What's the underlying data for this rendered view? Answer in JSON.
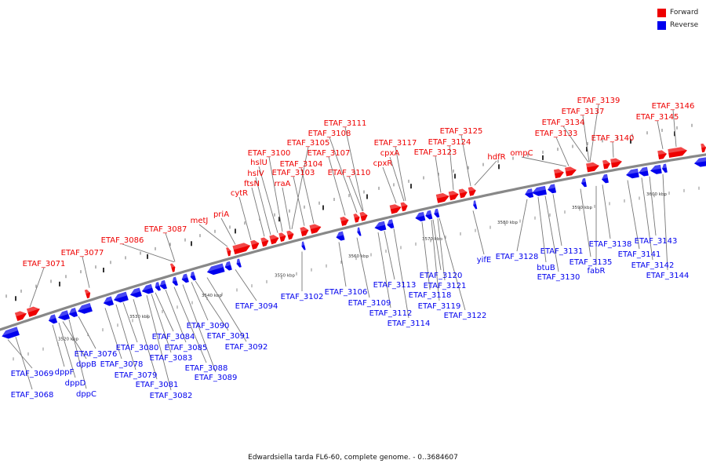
{
  "caption": "Edwardsiella tarda FL6-60, complete genome. - 0..3684607",
  "legend": {
    "forward": {
      "label": "Forward",
      "color": "#ee0000"
    },
    "reverse": {
      "label": "Reverse",
      "color": "#0000ee"
    }
  },
  "colors": {
    "backbone": "#888888",
    "tick": "#000000",
    "leader": "#777777"
  },
  "scale": {
    "unit": "kbp",
    "labels": [
      "3520 kbp",
      "3530 kbp",
      "3540 kbp",
      "3550 kbp",
      "3560 kbp",
      "3570 kbp",
      "3580 kbp",
      "3590 kbp",
      "3600 kbp"
    ]
  },
  "forward_genes": [
    "ETAF_3071",
    "ETAF_3077",
    "ETAF_3086",
    "ETAF_3087",
    "metJ",
    "priA",
    "cytR",
    "ftsN",
    "hslV",
    "hslU",
    "ETAF_3100",
    "rraA",
    "ETAF_3103",
    "ETAF_3104",
    "ETAF_3105",
    "ETAF_3107",
    "ETAF_3108",
    "ETAF_3111",
    "ETAF_3110",
    "cpxR",
    "cpxA",
    "ETAF_3117",
    "ETAF_3123",
    "ETAF_3124",
    "ETAF_3125",
    "hdfR",
    "ompC",
    "ETAF_3133",
    "ETAF_3134",
    "ETAF_3137",
    "ETAF_3139",
    "ETAF_3140",
    "ETAF_3145",
    "ETAF_3146"
  ],
  "reverse_genes": [
    "ETAF_3069",
    "ETAF_3068",
    "dppF",
    "dppD",
    "dppB",
    "dppC",
    "ETAF_3076",
    "ETAF_3078",
    "ETAF_3079",
    "ETAF_3080",
    "ETAF_3081",
    "ETAF_3082",
    "ETAF_3083",
    "ETAF_3084",
    "ETAF_3085",
    "ETAF_3088",
    "ETAF_3089",
    "ETAF_3090",
    "ETAF_3091",
    "ETAF_3092",
    "ETAF_3094",
    "ETAF_3102",
    "ETAF_3106",
    "ETAF_3109",
    "ETAF_3112",
    "ETAF_3113",
    "ETAF_3114",
    "ETAF_3118",
    "ETAF_3119",
    "ETAF_3120",
    "ETAF_3121",
    "ETAF_3122",
    "yifE",
    "ETAF_3128",
    "btuB",
    "ETAF_3130",
    "ETAF_3131",
    "ETAF_3135",
    "fabR",
    "ETAF_3138",
    "ETAF_3141",
    "ETAF_3142",
    "ETAF_3143",
    "ETAF_3144"
  ]
}
